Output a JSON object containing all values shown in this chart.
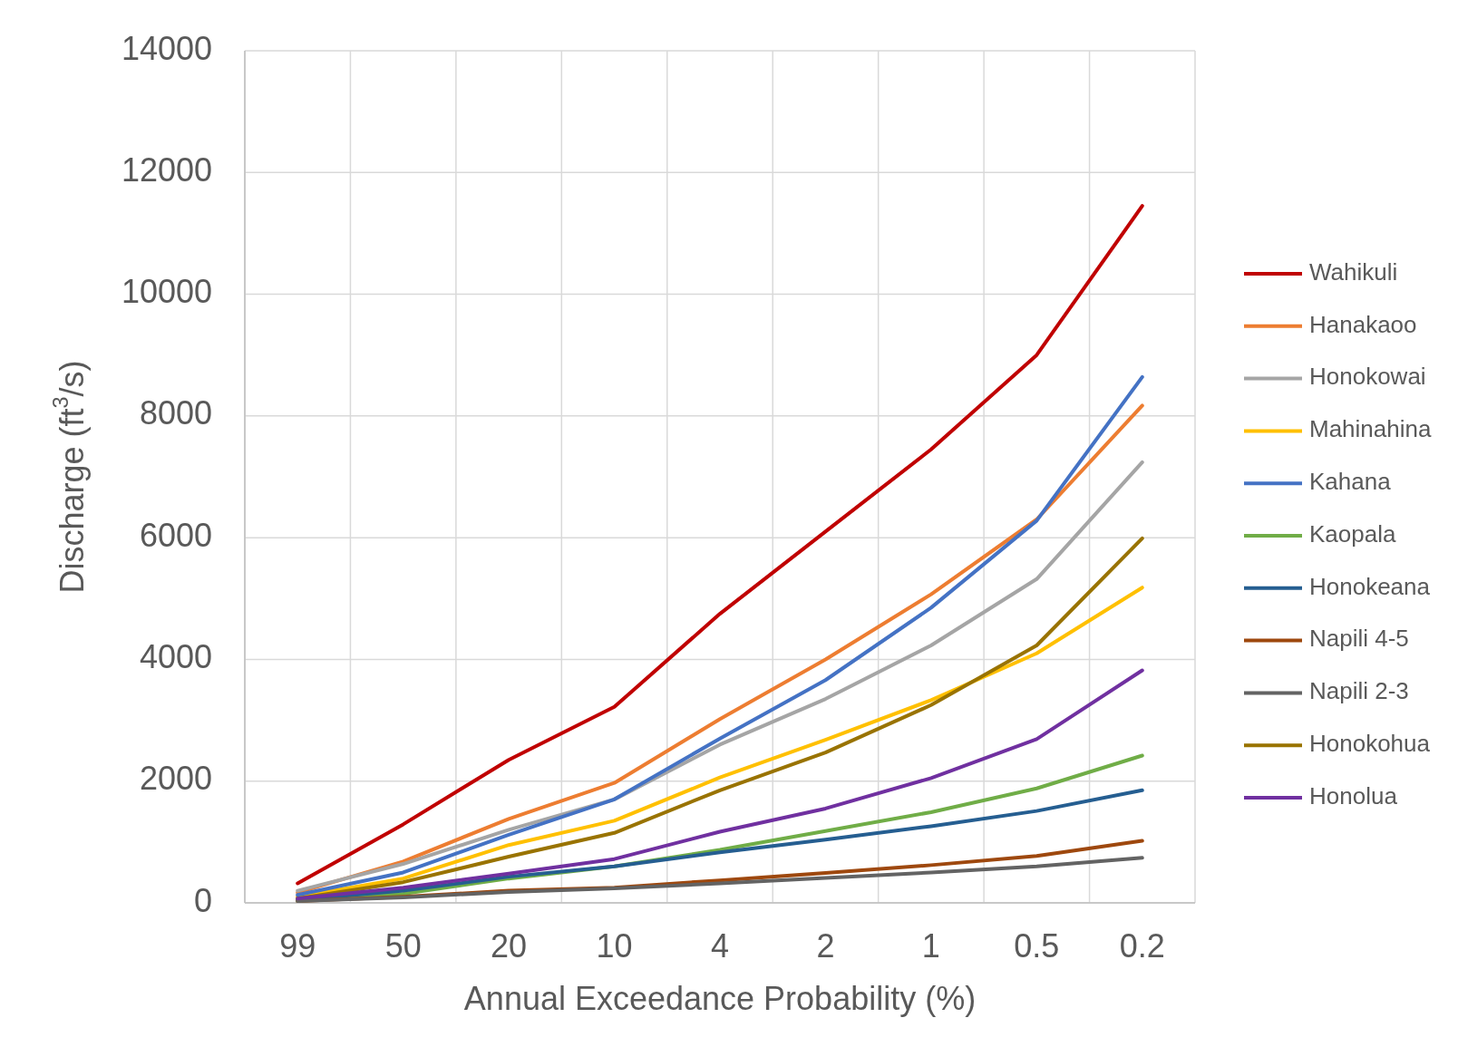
{
  "chart_data": {
    "type": "line",
    "xlabel": "Annual Exceedance Probability (%)",
    "ylabel": "Discharge (ft$^{3}$/s)",
    "categories": [
      "99",
      "50",
      "20",
      "10",
      "4",
      "2",
      "1",
      "0.5",
      "0.2"
    ],
    "ylim": [
      0,
      14000
    ],
    "yticks": [
      0,
      2000,
      4000,
      6000,
      8000,
      10000,
      12000,
      14000
    ],
    "grid": true,
    "legend": "right",
    "marker": "none",
    "line_style": "solid",
    "series": [
      {
        "name": "Wahikuli",
        "color": "#c00000",
        "values": [
          320,
          1290,
          2350,
          3220,
          4750,
          6100,
          7450,
          9000,
          11450
        ]
      },
      {
        "name": "Hanakaoo",
        "color": "#ed7d31",
        "values": [
          170,
          680,
          1380,
          1970,
          3020,
          4000,
          5070,
          6300,
          8170
        ]
      },
      {
        "name": "Honokowai",
        "color": "#a5a5a5",
        "values": [
          200,
          640,
          1200,
          1700,
          2600,
          3350,
          4230,
          5320,
          7240
        ]
      },
      {
        "name": "Mahinahina",
        "color": "#ffc000",
        "values": [
          100,
          400,
          950,
          1350,
          2060,
          2680,
          3330,
          4100,
          5180
        ]
      },
      {
        "name": "Kahana",
        "color": "#4472c4",
        "values": [
          130,
          500,
          1120,
          1700,
          2700,
          3660,
          4850,
          6280,
          8640
        ]
      },
      {
        "name": "Kaopala",
        "color": "#70ad47",
        "values": [
          30,
          150,
          400,
          600,
          870,
          1180,
          1490,
          1880,
          2420
        ]
      },
      {
        "name": "Honokeana",
        "color": "#255e91",
        "values": [
          50,
          200,
          430,
          600,
          830,
          1040,
          1260,
          1510,
          1850
        ]
      },
      {
        "name": "Napili 4-5",
        "color": "#9e480e",
        "values": [
          30,
          100,
          200,
          250,
          370,
          490,
          620,
          770,
          1020
        ]
      },
      {
        "name": "Napili 2-3",
        "color": "#636363",
        "values": [
          30,
          90,
          180,
          240,
          320,
          410,
          500,
          600,
          740
        ]
      },
      {
        "name": "Honokohua",
        "color": "#997300",
        "values": [
          70,
          340,
          760,
          1150,
          1850,
          2470,
          3250,
          4230,
          5990
        ]
      },
      {
        "name": "Honolua",
        "color": "#7030a0",
        "values": [
          70,
          250,
          480,
          720,
          1170,
          1550,
          2050,
          2690,
          3820
        ]
      }
    ]
  }
}
